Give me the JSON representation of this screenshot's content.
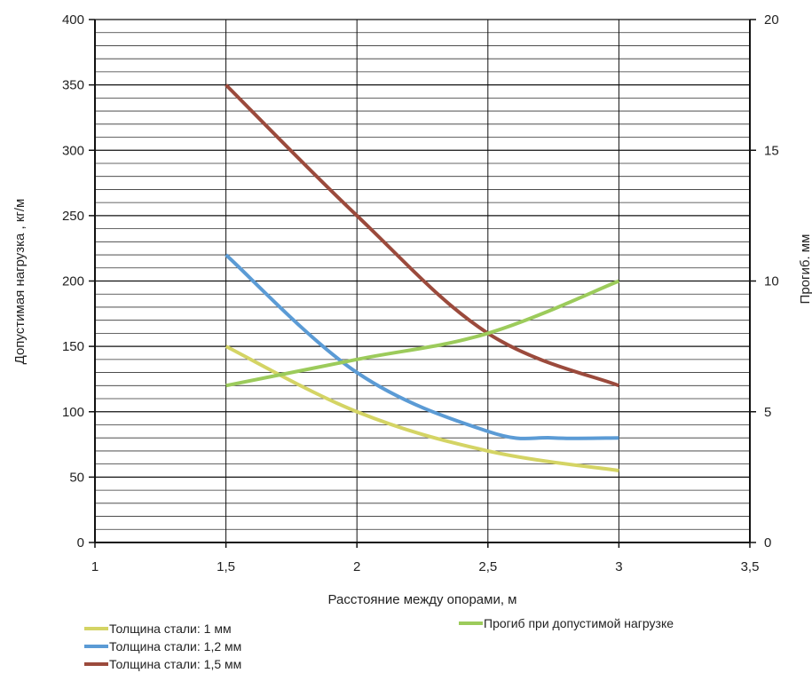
{
  "chart_data": {
    "type": "line",
    "title": "",
    "xlabel": "Расстояние между опорами, м",
    "ylabel": "Допустимая нагрузка , кг/м",
    "y2label": "Прогиб. мм",
    "xlim": [
      1,
      3.5
    ],
    "ylim": [
      0,
      400
    ],
    "y2lim": [
      0,
      20
    ],
    "x_ticks": [
      1,
      1.5,
      2,
      2.5,
      3,
      3.5
    ],
    "x_tick_labels": [
      "1",
      "1,5",
      "2",
      "2,5",
      "3",
      "3,5"
    ],
    "y_ticks": [
      0,
      50,
      100,
      150,
      200,
      250,
      300,
      350,
      400
    ],
    "y_tick_labels": [
      "0",
      "50",
      "100",
      "150",
      "200",
      "250",
      "300",
      "350",
      "400"
    ],
    "y2_ticks": [
      0,
      5,
      10,
      15,
      20
    ],
    "y2_tick_labels": [
      "0",
      "5",
      "10",
      "15",
      "20"
    ],
    "minor_y_step": 10,
    "grid": true,
    "legend_position": "bottom",
    "series": [
      {
        "name": "Толщина стали: 1 мм",
        "axis": "left",
        "color": "#d4d464",
        "x": [
          1.5,
          2,
          2.5,
          3
        ],
        "values": [
          150,
          100,
          70,
          55
        ]
      },
      {
        "name": "Толщина стали: 1,2 мм",
        "axis": "left",
        "color": "#5b9bd5",
        "x": [
          1.5,
          2,
          2.5,
          2.75,
          3
        ],
        "values": [
          220,
          130,
          85,
          80,
          80
        ]
      },
      {
        "name": "Толщина стали: 1,5 мм",
        "axis": "left",
        "color": "#9b4a3c",
        "x": [
          1.5,
          2,
          2.5,
          3
        ],
        "values": [
          350,
          250,
          160,
          120
        ]
      },
      {
        "name": "Прогиб при допустимой нагрузке",
        "axis": "right",
        "color": "#9ccb5b",
        "x": [
          1.5,
          2,
          2.5,
          3
        ],
        "values": [
          6,
          7,
          8,
          10
        ]
      }
    ]
  }
}
